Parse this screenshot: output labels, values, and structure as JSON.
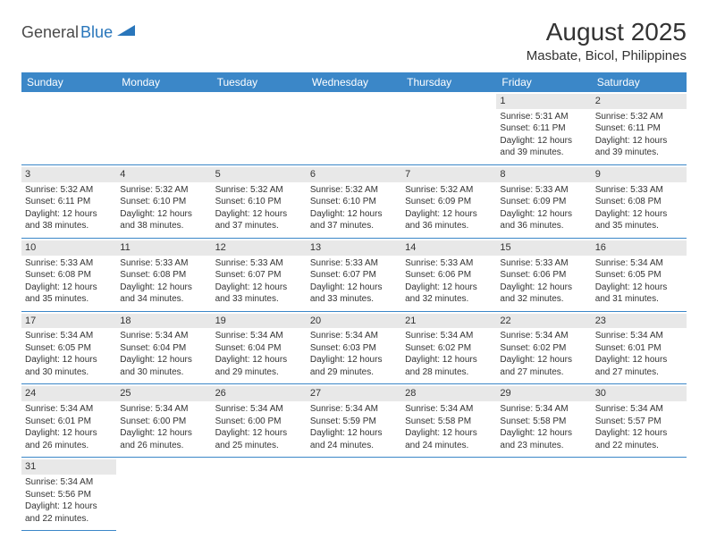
{
  "logo": {
    "general": "General",
    "blue": "Blue"
  },
  "title": "August 2025",
  "location": "Masbate, Bicol, Philippines",
  "colors": {
    "header_bg": "#3b87c8",
    "header_text": "#ffffff",
    "daynum_bg": "#e8e8e8",
    "cell_border": "#3b87c8",
    "text": "#333333",
    "logo_gray": "#4a4a4a",
    "logo_blue": "#2976bb"
  },
  "day_headers": [
    "Sunday",
    "Monday",
    "Tuesday",
    "Wednesday",
    "Thursday",
    "Friday",
    "Saturday"
  ],
  "weeks": [
    [
      null,
      null,
      null,
      null,
      null,
      {
        "n": "1",
        "sr": "5:31 AM",
        "ss": "6:11 PM",
        "dh": "12",
        "dm": "39"
      },
      {
        "n": "2",
        "sr": "5:32 AM",
        "ss": "6:11 PM",
        "dh": "12",
        "dm": "39"
      }
    ],
    [
      {
        "n": "3",
        "sr": "5:32 AM",
        "ss": "6:11 PM",
        "dh": "12",
        "dm": "38"
      },
      {
        "n": "4",
        "sr": "5:32 AM",
        "ss": "6:10 PM",
        "dh": "12",
        "dm": "38"
      },
      {
        "n": "5",
        "sr": "5:32 AM",
        "ss": "6:10 PM",
        "dh": "12",
        "dm": "37"
      },
      {
        "n": "6",
        "sr": "5:32 AM",
        "ss": "6:10 PM",
        "dh": "12",
        "dm": "37"
      },
      {
        "n": "7",
        "sr": "5:32 AM",
        "ss": "6:09 PM",
        "dh": "12",
        "dm": "36"
      },
      {
        "n": "8",
        "sr": "5:33 AM",
        "ss": "6:09 PM",
        "dh": "12",
        "dm": "36"
      },
      {
        "n": "9",
        "sr": "5:33 AM",
        "ss": "6:08 PM",
        "dh": "12",
        "dm": "35"
      }
    ],
    [
      {
        "n": "10",
        "sr": "5:33 AM",
        "ss": "6:08 PM",
        "dh": "12",
        "dm": "35"
      },
      {
        "n": "11",
        "sr": "5:33 AM",
        "ss": "6:08 PM",
        "dh": "12",
        "dm": "34"
      },
      {
        "n": "12",
        "sr": "5:33 AM",
        "ss": "6:07 PM",
        "dh": "12",
        "dm": "33"
      },
      {
        "n": "13",
        "sr": "5:33 AM",
        "ss": "6:07 PM",
        "dh": "12",
        "dm": "33"
      },
      {
        "n": "14",
        "sr": "5:33 AM",
        "ss": "6:06 PM",
        "dh": "12",
        "dm": "32"
      },
      {
        "n": "15",
        "sr": "5:33 AM",
        "ss": "6:06 PM",
        "dh": "12",
        "dm": "32"
      },
      {
        "n": "16",
        "sr": "5:34 AM",
        "ss": "6:05 PM",
        "dh": "12",
        "dm": "31"
      }
    ],
    [
      {
        "n": "17",
        "sr": "5:34 AM",
        "ss": "6:05 PM",
        "dh": "12",
        "dm": "30"
      },
      {
        "n": "18",
        "sr": "5:34 AM",
        "ss": "6:04 PM",
        "dh": "12",
        "dm": "30"
      },
      {
        "n": "19",
        "sr": "5:34 AM",
        "ss": "6:04 PM",
        "dh": "12",
        "dm": "29"
      },
      {
        "n": "20",
        "sr": "5:34 AM",
        "ss": "6:03 PM",
        "dh": "12",
        "dm": "29"
      },
      {
        "n": "21",
        "sr": "5:34 AM",
        "ss": "6:02 PM",
        "dh": "12",
        "dm": "28"
      },
      {
        "n": "22",
        "sr": "5:34 AM",
        "ss": "6:02 PM",
        "dh": "12",
        "dm": "27"
      },
      {
        "n": "23",
        "sr": "5:34 AM",
        "ss": "6:01 PM",
        "dh": "12",
        "dm": "27"
      }
    ],
    [
      {
        "n": "24",
        "sr": "5:34 AM",
        "ss": "6:01 PM",
        "dh": "12",
        "dm": "26"
      },
      {
        "n": "25",
        "sr": "5:34 AM",
        "ss": "6:00 PM",
        "dh": "12",
        "dm": "26"
      },
      {
        "n": "26",
        "sr": "5:34 AM",
        "ss": "6:00 PM",
        "dh": "12",
        "dm": "25"
      },
      {
        "n": "27",
        "sr": "5:34 AM",
        "ss": "5:59 PM",
        "dh": "12",
        "dm": "24"
      },
      {
        "n": "28",
        "sr": "5:34 AM",
        "ss": "5:58 PM",
        "dh": "12",
        "dm": "24"
      },
      {
        "n": "29",
        "sr": "5:34 AM",
        "ss": "5:58 PM",
        "dh": "12",
        "dm": "23"
      },
      {
        "n": "30",
        "sr": "5:34 AM",
        "ss": "5:57 PM",
        "dh": "12",
        "dm": "22"
      }
    ],
    [
      {
        "n": "31",
        "sr": "5:34 AM",
        "ss": "5:56 PM",
        "dh": "12",
        "dm": "22"
      },
      null,
      null,
      null,
      null,
      null,
      null
    ]
  ],
  "labels": {
    "sunrise": "Sunrise:",
    "sunset": "Sunset:",
    "daylight_prefix": "Daylight:",
    "hours_word": "hours",
    "and_word": "and",
    "minutes_word": "minutes."
  }
}
